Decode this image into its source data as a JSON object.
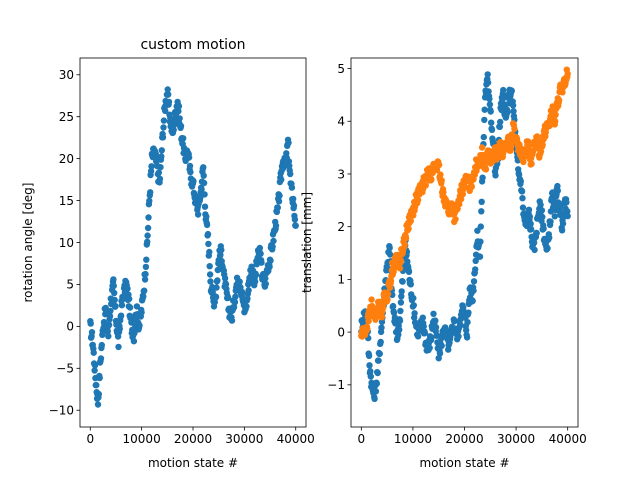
{
  "chart_data": [
    {
      "type": "scatter",
      "title": "custom motion",
      "xlabel": "motion state #",
      "ylabel": "rotation angle [deg]",
      "xlim": [
        -2000,
        42000
      ],
      "ylim": [
        -12,
        32
      ],
      "xticks": [
        0,
        10000,
        20000,
        30000,
        40000
      ],
      "yticks": [
        -10,
        -5,
        0,
        5,
        10,
        15,
        20,
        25,
        30
      ],
      "xtick_labels": [
        "0",
        "10000",
        "20000",
        "30000",
        "40000"
      ],
      "ytick_labels": [
        "−10",
        "−5",
        "0",
        "5",
        "10",
        "15",
        "20",
        "25",
        "30"
      ],
      "grid": false,
      "series": [
        {
          "color": "#1f77b4",
          "x": [
            0,
            500,
            1000,
            1500,
            2000,
            2500,
            3000,
            3500,
            4000,
            4500,
            5000,
            5500,
            6000,
            6500,
            7000,
            7500,
            8000,
            8500,
            9000,
            9500,
            10000,
            10500,
            11000,
            11500,
            12000,
            12500,
            13000,
            13500,
            14000,
            14500,
            15000,
            15500,
            16000,
            16500,
            17000,
            17500,
            18000,
            18500,
            19000,
            19500,
            20000,
            20500,
            21000,
            21500,
            22000,
            22500,
            23000,
            23500,
            24000,
            24500,
            25000,
            25500,
            26000,
            26500,
            27000,
            27500,
            28000,
            28500,
            29000,
            29500,
            30000,
            30500,
            31000,
            31500,
            32000,
            32500,
            33000,
            33500,
            34000,
            34500,
            35000,
            35500,
            36000,
            36500,
            37000,
            37500,
            38000,
            38500,
            39000,
            39500,
            40000
          ],
          "y": [
            0,
            -2,
            -6,
            -9,
            -4,
            0,
            2,
            -1,
            3,
            5,
            1,
            -2,
            2,
            4,
            5,
            3,
            0,
            -1,
            2,
            0,
            2,
            5,
            9,
            15,
            20,
            21,
            19,
            17,
            22,
            26,
            28,
            25,
            23,
            25,
            27,
            24,
            22,
            20,
            21,
            18,
            17,
            15,
            14,
            16,
            19,
            13,
            10,
            5,
            3,
            4,
            8,
            9,
            6,
            4,
            2,
            1,
            3,
            5,
            6,
            4,
            2,
            3,
            6,
            7,
            5,
            8,
            9,
            6,
            5,
            7,
            8,
            10,
            12,
            14,
            17,
            20,
            19,
            22,
            17,
            15,
            12
          ]
        }
      ]
    },
    {
      "type": "scatter",
      "title": "",
      "xlabel": "motion state #",
      "ylabel": "translation [mm]",
      "xlim": [
        -2000,
        42000
      ],
      "ylim": [
        -1.8,
        5.2
      ],
      "xticks": [
        0,
        10000,
        20000,
        30000,
        40000
      ],
      "yticks": [
        -1,
        0,
        1,
        2,
        3,
        4,
        5
      ],
      "xtick_labels": [
        "0",
        "10000",
        "20000",
        "30000",
        "40000"
      ],
      "ytick_labels": [
        "−1",
        "0",
        "1",
        "2",
        "3",
        "4",
        "5"
      ],
      "grid": false,
      "series": [
        {
          "color": "#1f77b4",
          "x": [
            0,
            500,
            1000,
            1500,
            2000,
            2500,
            3000,
            3500,
            4000,
            4500,
            5000,
            5500,
            6000,
            6500,
            7000,
            7500,
            8000,
            8500,
            9000,
            9500,
            10000,
            10500,
            11000,
            11500,
            12000,
            12500,
            13000,
            13500,
            14000,
            14500,
            15000,
            15500,
            16000,
            16500,
            17000,
            17500,
            18000,
            18500,
            19000,
            19500,
            20000,
            20500,
            21000,
            21500,
            22000,
            22500,
            23000,
            23500,
            24000,
            24500,
            25000,
            25500,
            26000,
            26500,
            27000,
            27500,
            28000,
            28500,
            29000,
            29500,
            30000,
            30500,
            31000,
            31500,
            32000,
            32500,
            33000,
            33500,
            34000,
            34500,
            35000,
            35500,
            36000,
            36500,
            37000,
            37500,
            38000,
            38500,
            39000,
            39500,
            40000
          ],
          "y": [
            0.1,
            0.3,
            0.4,
            -0.5,
            -1.0,
            -1.2,
            -0.9,
            -0.4,
            0.2,
            0.8,
            1.3,
            1.6,
            0.6,
            0.2,
            -0.1,
            0.3,
            1.0,
            1.7,
            1.3,
            0.9,
            0.6,
            0.2,
            0.0,
            0.1,
            0.2,
            -0.2,
            -0.3,
            -0.1,
            0.3,
            0.0,
            -0.4,
            -0.2,
            0.1,
            -0.1,
            -0.3,
            0.0,
            0.2,
            -0.1,
            0.1,
            0.5,
            0.3,
            0.0,
            0.8,
            0.6,
            1.2,
            1.8,
            1.5,
            3.0,
            4.5,
            4.8,
            4.3,
            3.6,
            3.0,
            3.4,
            4.2,
            4.5,
            4.0,
            4.4,
            4.6,
            4.2,
            3.5,
            3.0,
            2.8,
            2.2,
            2.0,
            2.3,
            1.8,
            1.6,
            2.0,
            2.4,
            2.2,
            1.8,
            1.5,
            2.0,
            2.6,
            2.2,
            2.7,
            2.3,
            2.0,
            2.5,
            2.2
          ]
        },
        {
          "color": "#ff7f0e",
          "x": [
            0,
            500,
            1000,
            1500,
            2000,
            2500,
            3000,
            3500,
            4000,
            4500,
            5000,
            5500,
            6000,
            6500,
            7000,
            7500,
            8000,
            8500,
            9000,
            9500,
            10000,
            10500,
            11000,
            11500,
            12000,
            12500,
            13000,
            13500,
            14000,
            14500,
            15000,
            15500,
            16000,
            16500,
            17000,
            17500,
            18000,
            18500,
            19000,
            19500,
            20000,
            20500,
            21000,
            21500,
            22000,
            22500,
            23000,
            23500,
            24000,
            24500,
            25000,
            25500,
            26000,
            26500,
            27000,
            27500,
            28000,
            28500,
            29000,
            29500,
            30000,
            30500,
            31000,
            31500,
            32000,
            32500,
            33000,
            33500,
            34000,
            34500,
            35000,
            35500,
            36000,
            36500,
            37000,
            37500,
            38000,
            38500,
            39000,
            39500,
            40000
          ],
          "y": [
            -0.05,
            0.0,
            0.1,
            0.3,
            0.5,
            0.3,
            0.4,
            0.5,
            0.4,
            0.7,
            0.7,
            0.9,
            1.2,
            1.3,
            1.4,
            1.3,
            1.6,
            1.8,
            2.0,
            2.2,
            2.3,
            2.5,
            2.6,
            2.7,
            2.8,
            2.9,
            3.0,
            3.0,
            3.1,
            3.2,
            3.1,
            2.8,
            2.6,
            2.4,
            2.3,
            2.4,
            2.2,
            2.3,
            2.5,
            2.7,
            2.8,
            2.9,
            2.8,
            2.9,
            3.1,
            3.2,
            3.3,
            3.4,
            3.1,
            3.4,
            3.3,
            3.3,
            3.4,
            3.4,
            3.5,
            3.4,
            3.5,
            3.6,
            3.5,
            3.9,
            3.6,
            3.5,
            3.4,
            3.3,
            3.5,
            3.5,
            3.2,
            3.5,
            3.7,
            3.4,
            3.6,
            3.8,
            3.9,
            4.0,
            4.2,
            4.0,
            4.3,
            4.6,
            4.5,
            4.8,
            4.9
          ]
        }
      ]
    }
  ]
}
